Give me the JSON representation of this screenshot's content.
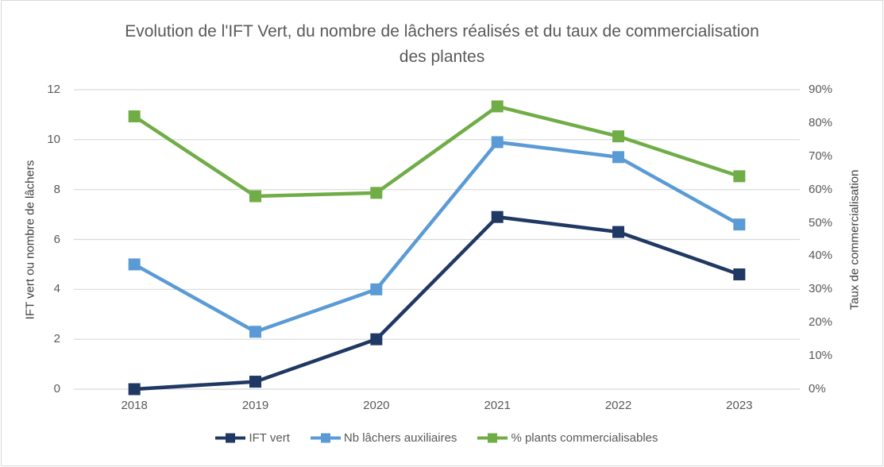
{
  "title": "Evolution de l'IFT Vert, du nombre de lâchers réalisés et du taux de commercialisation des plantes",
  "colors": {
    "navy": "#1F3864",
    "blue": "#5B9BD5",
    "green": "#70AD47",
    "gridline": "#D9D9D9",
    "axis_text": "#595959",
    "frame_border": "#D9D9D9"
  },
  "chart_data": {
    "type": "line",
    "title": "Evolution de l'IFT Vert, du nombre de lâchers réalisés et du taux de commercialisation des plantes",
    "categories": [
      "2018",
      "2019",
      "2020",
      "2021",
      "2022",
      "2023"
    ],
    "series": [
      {
        "name": "IFT vert",
        "axis": "left",
        "color": "#1F3864",
        "values": [
          0,
          0.3,
          2,
          6.9,
          6.3,
          4.6
        ]
      },
      {
        "name": "Nb lâchers auxiliaires",
        "axis": "left",
        "color": "#5B9BD5",
        "values": [
          5,
          2.3,
          4,
          9.9,
          9.3,
          6.6
        ]
      },
      {
        "name": "% plants commercialisables",
        "axis": "right",
        "color": "#70AD47",
        "values": [
          82,
          58,
          59,
          85,
          76,
          64
        ]
      }
    ],
    "left_axis": {
      "label": "IFT vert ou nombre de lâchers",
      "min": 0,
      "max": 12,
      "step": 2,
      "ticks": [
        "0",
        "2",
        "4",
        "6",
        "8",
        "10",
        "12"
      ]
    },
    "right_axis": {
      "label": "Taux de commercialisation",
      "min": 0,
      "max": 90,
      "step": 10,
      "ticks": [
        "0%",
        "10%",
        "20%",
        "30%",
        "40%",
        "50%",
        "60%",
        "70%",
        "80%",
        "90%"
      ]
    },
    "grid": "horizontal",
    "legend_position": "bottom"
  }
}
